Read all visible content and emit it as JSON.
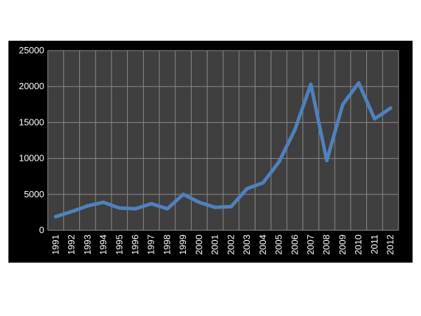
{
  "chart_data": {
    "type": "line",
    "title": "",
    "xlabel": "",
    "ylabel": "",
    "categories": [
      "1991",
      "1992",
      "1993",
      "1994",
      "1995",
      "1996",
      "1997",
      "1998",
      "1999",
      "2000",
      "2001",
      "2002",
      "2003",
      "2004",
      "2005",
      "2006",
      "2007",
      "2008",
      "2009",
      "2010",
      "2011",
      "2012"
    ],
    "series": [
      {
        "values": [
          1900,
          2600,
          3400,
          3900,
          3100,
          3000,
          3700,
          3000,
          5000,
          3900,
          3200,
          3300,
          5800,
          6600,
          9500,
          14000,
          20300,
          9700,
          17500,
          20500,
          15500,
          17000
        ],
        "color": "#4f81bd"
      }
    ],
    "ylim": [
      0,
      25000
    ],
    "yticks": [
      0,
      5000,
      10000,
      15000,
      20000,
      25000
    ],
    "grid": true,
    "legend": "none",
    "plot_background": "#3f3f3f",
    "panel_background": "#000000",
    "grid_color": "#8c8c8c",
    "text_color": "#ffffff"
  }
}
